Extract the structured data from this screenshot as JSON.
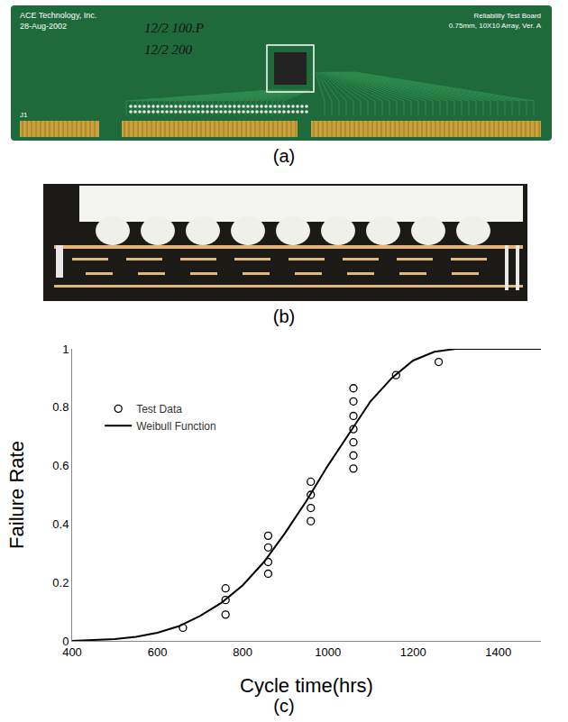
{
  "panel_labels": [
    "(a)",
    "(b)",
    "(c)"
  ],
  "board_texts": {
    "maker": "ACE Technology, Inc.",
    "date": "28-Aug-2002",
    "handwritten": [
      "12/2 100.P",
      "12/2 200"
    ],
    "board_title": "Reliability Test Board",
    "board_spec": "0.75mm, 10X10 Array, Ver. A",
    "connector": "J1"
  },
  "chart_data": {
    "type": "scatter",
    "xlabel": "Cycle time(hrs)",
    "ylabel": "Failure Rate",
    "xlim": [
      400,
      1500
    ],
    "xticks": [
      400,
      600,
      800,
      1000,
      1200,
      1400
    ],
    "ylim": [
      0,
      1
    ],
    "yticks": [
      0,
      0.2,
      0.4,
      0.6,
      0.8,
      1
    ],
    "grid": false,
    "legend": "upper left",
    "series": [
      {
        "name": "Test Data",
        "type": "scatter",
        "marker": "circle-open",
        "color": "#000000",
        "x": [
          660,
          760,
          760,
          760,
          860,
          860,
          860,
          860,
          960,
          960,
          960,
          960,
          1060,
          1060,
          1060,
          1060,
          1060,
          1060,
          1060,
          1160,
          1260
        ],
        "values": [
          0.045,
          0.09,
          0.14,
          0.18,
          0.23,
          0.27,
          0.32,
          0.36,
          0.41,
          0.455,
          0.5,
          0.545,
          0.59,
          0.635,
          0.68,
          0.725,
          0.77,
          0.82,
          0.865,
          0.91,
          0.955
        ]
      },
      {
        "name": "Weibull Function",
        "type": "line",
        "line_style": "solid",
        "color": "#000000",
        "x": [
          400,
          450,
          500,
          550,
          600,
          650,
          700,
          750,
          800,
          850,
          900,
          950,
          1000,
          1050,
          1100,
          1150,
          1200,
          1250,
          1300,
          1350,
          1400,
          1450,
          1500
        ],
        "values": [
          0,
          0.002,
          0.006,
          0.014,
          0.028,
          0.05,
          0.085,
          0.13,
          0.19,
          0.27,
          0.37,
          0.48,
          0.6,
          0.71,
          0.82,
          0.9,
          0.96,
          0.99,
          1,
          1,
          1,
          1,
          1
        ]
      }
    ]
  }
}
